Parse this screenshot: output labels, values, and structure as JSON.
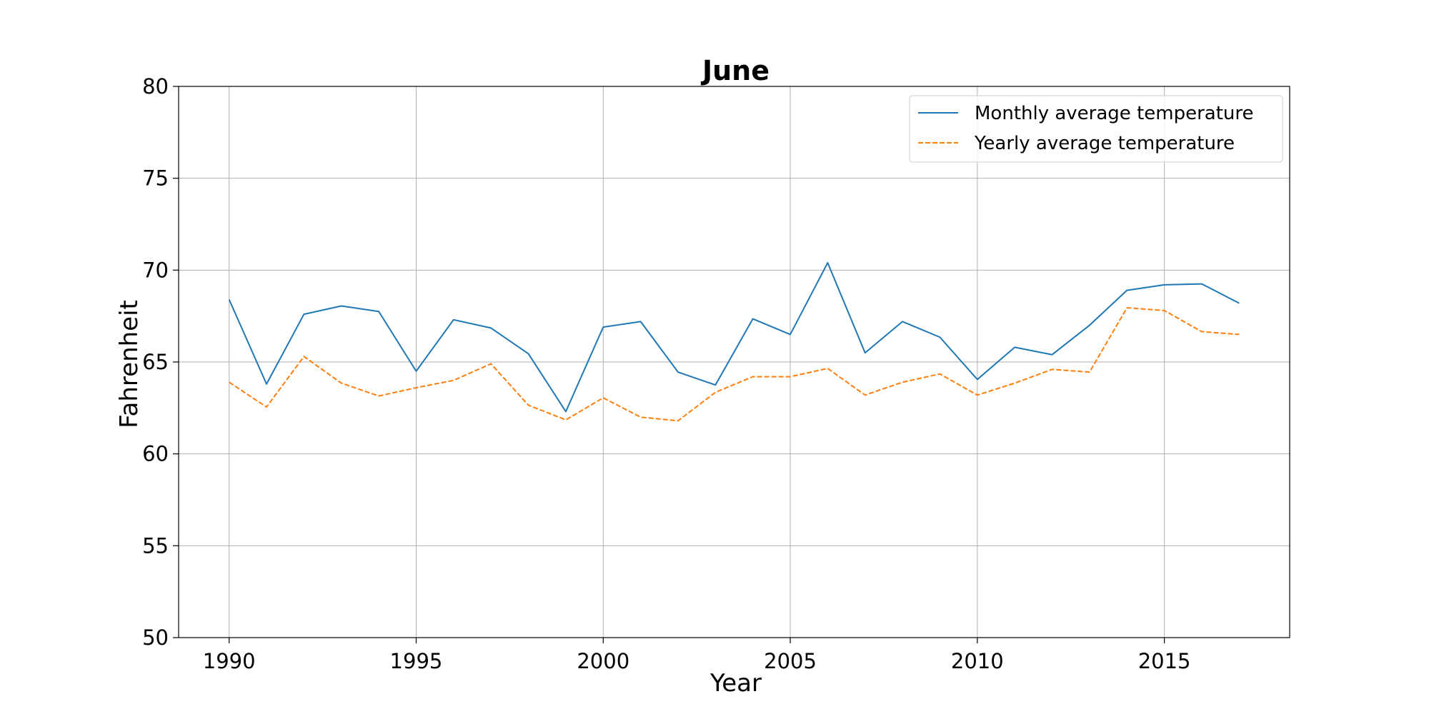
{
  "chart_data": {
    "type": "line",
    "title": "June",
    "xlabel": "Year",
    "ylabel": "Fahrenheit",
    "xlim": [
      1988.65,
      2018.35
    ],
    "ylim": [
      50,
      80
    ],
    "xticks": [
      1990,
      1995,
      2000,
      2005,
      2010,
      2015
    ],
    "yticks": [
      50,
      55,
      60,
      65,
      70,
      75,
      80
    ],
    "grid": true,
    "legend_position": "top-right",
    "x": [
      1990,
      1991,
      1992,
      1993,
      1994,
      1995,
      1996,
      1997,
      1998,
      1999,
      2000,
      2001,
      2002,
      2003,
      2004,
      2005,
      2006,
      2007,
      2008,
      2009,
      2010,
      2011,
      2012,
      2013,
      2014,
      2015,
      2016,
      2017
    ],
    "series": [
      {
        "name": "Monthly average temperature",
        "color": "#1f77b4",
        "style": "solid",
        "values": [
          68.4,
          63.8,
          67.6,
          68.05,
          67.75,
          64.5,
          67.3,
          66.85,
          65.45,
          62.3,
          66.9,
          67.2,
          64.45,
          63.75,
          67.35,
          66.5,
          70.4,
          65.5,
          67.2,
          66.35,
          64.05,
          65.8,
          65.4,
          67.0,
          68.9,
          69.2,
          69.25,
          68.2
        ]
      },
      {
        "name": "Yearly average temperature",
        "color": "#ff7f0e",
        "style": "dashed",
        "values": [
          63.9,
          62.55,
          65.3,
          63.85,
          63.15,
          63.6,
          64.0,
          64.9,
          62.65,
          61.85,
          63.05,
          62.0,
          61.8,
          63.35,
          64.2,
          64.2,
          64.65,
          63.2,
          63.9,
          64.35,
          63.2,
          63.85,
          64.6,
          64.45,
          67.95,
          67.8,
          66.65,
          66.5
        ]
      }
    ]
  }
}
